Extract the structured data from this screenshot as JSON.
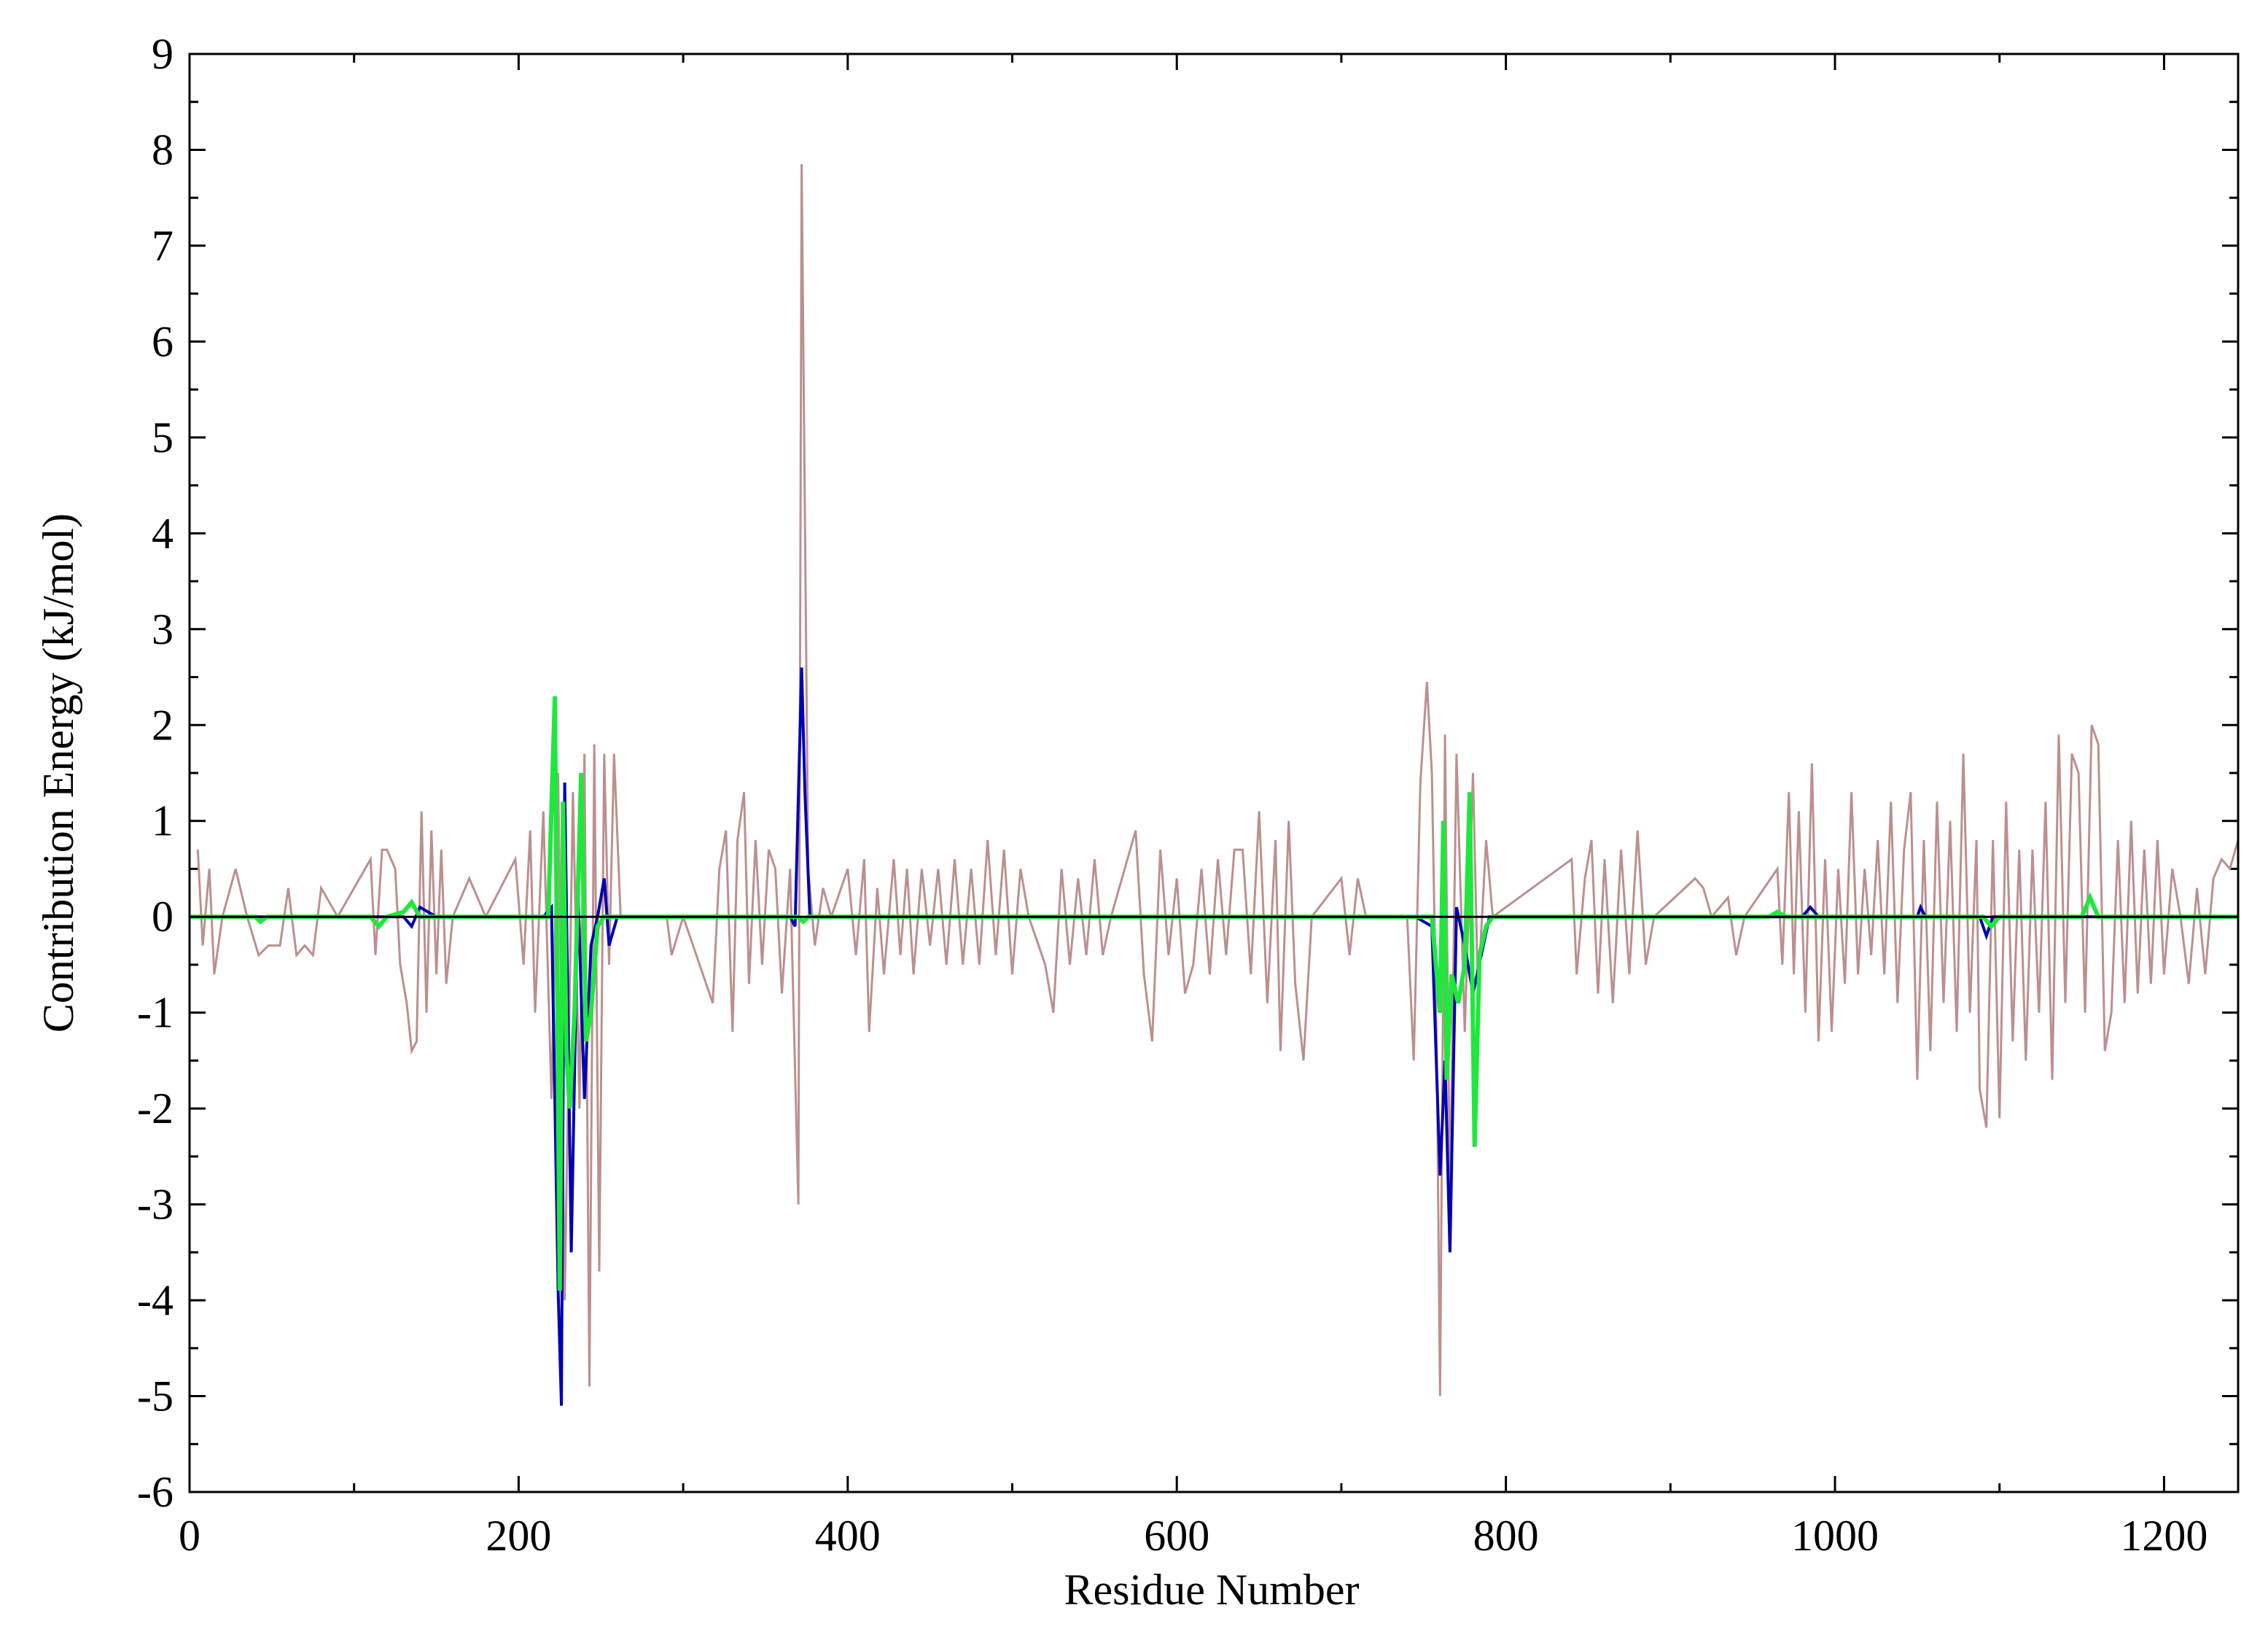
{
  "chart_data": {
    "type": "line",
    "x_label": "Residue Number",
    "y_label": "Contribution Energy (kJ/mol)",
    "xlim": [
      0,
      1245
    ],
    "ylim": [
      -6,
      9
    ],
    "xticks": [
      0,
      200,
      400,
      600,
      800,
      1000,
      1200
    ],
    "xminorticks": [
      100,
      300,
      500,
      700,
      900,
      1100
    ],
    "yticks": [
      -6,
      -5,
      -4,
      -3,
      -2,
      -1,
      0,
      1,
      2,
      3,
      4,
      5,
      6,
      7,
      8,
      9
    ],
    "yminorticks": [
      -5.5,
      -4.5,
      -3.5,
      -2.5,
      -1.5,
      -0.5,
      0.5,
      1.5,
      2.5,
      3.5,
      4.5,
      5.5,
      6.5,
      7.5,
      8.5
    ],
    "zero_line": true,
    "series": [
      {
        "color": "#bc8f8f",
        "x": [
          5,
          8,
          12,
          15,
          20,
          28,
          35,
          42,
          48,
          55,
          60,
          65,
          70,
          75,
          80,
          90,
          110,
          113,
          117,
          120,
          125,
          128,
          132,
          135,
          138,
          141,
          144,
          147,
          150,
          153,
          156,
          160,
          170,
          180,
          198,
          203,
          207,
          210,
          215,
          220,
          224,
          228,
          233,
          237,
          240,
          243,
          246,
          249,
          252,
          255,
          258,
          262,
          290,
          293,
          300,
          318,
          322,
          326,
          330,
          333,
          337,
          340,
          344,
          348,
          352,
          356,
          360,
          365,
          370,
          372,
          376,
          380,
          385,
          390,
          400,
          405,
          410,
          413,
          418,
          422,
          428,
          432,
          436,
          440,
          445,
          450,
          455,
          460,
          465,
          470,
          475,
          480,
          485,
          490,
          495,
          500,
          505,
          510,
          520,
          525,
          530,
          535,
          540,
          545,
          550,
          555,
          560,
          570,
          575,
          580,
          585,
          590,
          595,
          600,
          605,
          610,
          615,
          620,
          625,
          630,
          635,
          640,
          645,
          650,
          655,
          660,
          663,
          668,
          672,
          677,
          682,
          700,
          705,
          710,
          715,
          740,
          744,
          748,
          752,
          755,
          758,
          760,
          763,
          766,
          770,
          775,
          780,
          783,
          788,
          792,
          840,
          843,
          848,
          852,
          856,
          860,
          865,
          870,
          875,
          880,
          885,
          890,
          915,
          920,
          925,
          935,
          940,
          945,
          965,
          968,
          972,
          975,
          978,
          982,
          986,
          990,
          994,
          998,
          1002,
          1006,
          1010,
          1014,
          1018,
          1022,
          1026,
          1030,
          1034,
          1038,
          1042,
          1046,
          1050,
          1054,
          1058,
          1062,
          1066,
          1070,
          1074,
          1078,
          1082,
          1086,
          1088,
          1092,
          1096,
          1100,
          1104,
          1108,
          1112,
          1116,
          1120,
          1124,
          1128,
          1132,
          1136,
          1140,
          1144,
          1148,
          1152,
          1156,
          1160,
          1164,
          1168,
          1172,
          1176,
          1180,
          1184,
          1188,
          1192,
          1196,
          1200,
          1205,
          1210,
          1215,
          1220,
          1225,
          1230,
          1235,
          1240,
          1245
        ],
        "values": [
          0.7,
          -0.3,
          0.5,
          -0.6,
          0,
          0.5,
          0,
          -0.4,
          -0.3,
          -0.3,
          0.3,
          -0.4,
          -0.3,
          -0.4,
          0.3,
          0,
          0.6,
          -0.4,
          0.7,
          0.7,
          0.5,
          -0.5,
          -0.9,
          -1.4,
          -1.3,
          1.1,
          -1.0,
          0.9,
          -0.6,
          0.7,
          -0.7,
          0,
          0.4,
          0,
          0.6,
          -0.5,
          0.9,
          -1.0,
          1.1,
          -1.9,
          1.5,
          -4.0,
          1.3,
          -2.0,
          1.7,
          -4.9,
          1.8,
          -3.7,
          1.7,
          -0.5,
          1.7,
          0,
          0,
          -0.4,
          0,
          -0.9,
          0.5,
          0.9,
          -1.2,
          0.8,
          1.3,
          -0.7,
          0.8,
          -0.5,
          0.7,
          0.5,
          -0.8,
          0.5,
          -3.0,
          7.85,
          0.5,
          -0.3,
          0.3,
          0,
          0.5,
          -0.4,
          0.6,
          -1.2,
          0.3,
          -0.6,
          0.6,
          -0.4,
          0.5,
          -0.6,
          0.5,
          -0.3,
          0.5,
          -0.5,
          0.6,
          -0.5,
          0.5,
          -0.5,
          0.8,
          -0.4,
          0.7,
          -0.6,
          0.5,
          0,
          -0.5,
          -1.0,
          0.5,
          -0.5,
          0.4,
          -0.4,
          0.6,
          -0.4,
          0,
          0.6,
          0.9,
          -0.6,
          -1.3,
          0.7,
          -0.4,
          0.4,
          -0.8,
          -0.5,
          0.5,
          -0.6,
          0.6,
          -0.4,
          0.7,
          0.7,
          -0.6,
          1.1,
          -0.9,
          0.8,
          -1.4,
          1.0,
          -0.7,
          -1.5,
          0,
          0.4,
          -0.4,
          0.4,
          0,
          0,
          -1.5,
          1.4,
          2.45,
          1.5,
          -1.4,
          -5.0,
          1.9,
          -3.0,
          1.7,
          -1.2,
          1.5,
          -0.8,
          0.8,
          0,
          0.6,
          -0.6,
          0.4,
          0.8,
          -0.8,
          0.6,
          -0.9,
          0.7,
          -0.6,
          0.9,
          -0.5,
          0,
          0.4,
          0.3,
          0,
          0.2,
          -0.4,
          0,
          0.5,
          -0.5,
          1.3,
          -0.6,
          1.1,
          -1.0,
          1.6,
          -1.3,
          0.6,
          -1.2,
          0.5,
          -0.7,
          1.3,
          -0.6,
          0.5,
          -0.4,
          0.8,
          -0.6,
          1.2,
          -0.9,
          0.7,
          1.3,
          -1.7,
          0.8,
          -1.4,
          1.2,
          -0.9,
          1.0,
          -1.2,
          1.7,
          -1.0,
          0.8,
          -1.8,
          -2.2,
          0.8,
          -2.1,
          1.2,
          -1.3,
          0.7,
          -1.5,
          0.7,
          -1.0,
          1.2,
          -1.7,
          1.9,
          -0.9,
          1.7,
          1.5,
          -1.0,
          2.0,
          1.8,
          -1.4,
          -1.0,
          0.8,
          -0.9,
          1.0,
          -0.8,
          0.7,
          -0.7,
          0.8,
          -0.6,
          0.5,
          0,
          -0.7,
          0.3,
          -0.6,
          0.4,
          0.6,
          0.5,
          0.8
        ]
      },
      {
        "color": "#0000b4",
        "x": [
          0,
          130,
          135,
          140,
          150,
          215,
          220,
          224,
          226,
          228,
          232,
          236,
          240,
          244,
          248,
          252,
          255,
          260,
          365,
          368,
          372,
          374,
          377,
          745,
          755,
          760,
          763,
          766,
          770,
          775,
          780,
          785,
          790,
          980,
          985,
          990,
          1050,
          1052,
          1055,
          1088,
          1092,
          1096,
          1245
        ],
        "values": [
          0,
          0,
          -0.1,
          0.1,
          0,
          0,
          0.1,
          -3.9,
          -5.1,
          1.4,
          -3.5,
          0.3,
          -1.9,
          -0.3,
          0,
          0.4,
          -0.3,
          0,
          0,
          -0.1,
          2.6,
          1.3,
          0,
          0,
          -0.1,
          -2.7,
          -1.5,
          -3.5,
          0.1,
          -0.3,
          -0.8,
          -0.4,
          0,
          0,
          0.1,
          0,
          0,
          0.1,
          0,
          0,
          -0.2,
          0,
          0
        ]
      },
      {
        "color": "#1ee83c",
        "x": [
          0,
          40,
          43,
          47,
          110,
          115,
          120,
          130,
          135,
          140,
          218,
          222,
          225,
          227,
          229,
          231,
          234,
          238,
          241,
          244,
          248,
          252,
          370,
          373,
          376,
          755,
          760,
          762,
          764,
          767,
          771,
          775,
          778,
          781,
          784,
          788,
          792,
          960,
          965,
          970,
          1090,
          1095,
          1100,
          1150,
          1155,
          1160,
          1245
        ],
        "values": [
          0,
          0,
          -0.05,
          0,
          0,
          -0.1,
          0,
          0.05,
          0.15,
          0,
          0,
          2.3,
          -3.9,
          1.2,
          -1.4,
          -2.0,
          -1.0,
          1.5,
          -1.3,
          -1.0,
          -0.1,
          0,
          0,
          -0.05,
          0,
          0,
          -1.0,
          1.0,
          -1.7,
          -0.6,
          -0.9,
          -0.5,
          1.3,
          -2.4,
          -0.4,
          -0.1,
          0,
          0,
          0.05,
          0,
          0,
          -0.1,
          0,
          0,
          0.2,
          0,
          0
        ]
      }
    ]
  }
}
